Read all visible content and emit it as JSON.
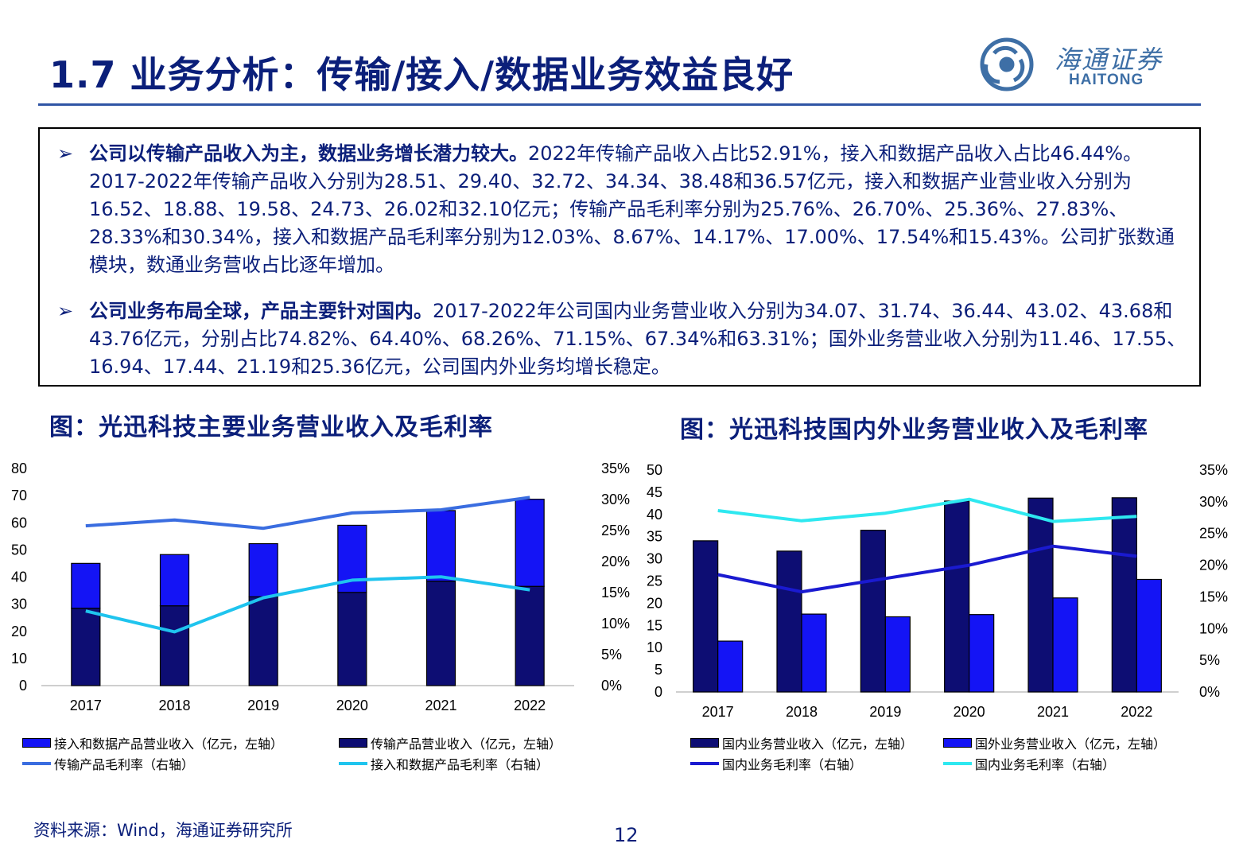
{
  "header": {
    "title": "1.7 业务分析：传输/接入/数据业务效益良好",
    "logo_cn": "海通证券",
    "logo_en": "HAITONG"
  },
  "bullets": [
    {
      "lead": "公司以传输产品收入为主，数据业务增长潜力较大。",
      "text": "2022年传输产品收入占比52.91%，接入和数据产品收入占比46.44%。2017-2022年传输产品收入分别为28.51、29.40、32.72、34.34、38.48和36.57亿元，接入和数据产业营业收入分别为16.52、18.88、19.58、24.73、26.02和32.10亿元；传输产品毛利率分别为25.76%、26.70%、25.36%、27.83%、28.33%和30.34%，接入和数据产品毛利率分别为12.03%、8.67%、14.17%、17.00%、17.54%和15.43%。公司扩张数通模块，数通业务营收占比逐年增加。"
    },
    {
      "lead": "公司业务布局全球，产品主要针对国内。",
      "text": "2017-2022年公司国内业务营业收入分别为34.07、31.74、36.44、43.02、43.68和43.76亿元，分别占比74.82%、64.40%、68.26%、71.15%、67.34%和63.31%；国外业务营业收入分别为11.46、17.55、16.94、17.44、21.19和25.36亿元，公司国内外业务均增长稳定。"
    }
  ],
  "bullet_mark": "➢",
  "chart_data": [
    {
      "type": "bar",
      "title": "图：光迅科技主要业务营业收入及毛利率",
      "categories": [
        "2017",
        "2018",
        "2019",
        "2020",
        "2021",
        "2022"
      ],
      "stacked": true,
      "ylim": [
        0,
        80
      ],
      "yticks": [
        "0",
        "10",
        "20",
        "30",
        "40",
        "50",
        "60",
        "70",
        "80"
      ],
      "y2lim": [
        0,
        35
      ],
      "y2ticks": [
        "0%",
        "5%",
        "10%",
        "15%",
        "20%",
        "25%",
        "30%",
        "35%"
      ],
      "series": [
        {
          "name": "传输产品营业收入（亿元，左轴）",
          "kind": "bar",
          "axis": "left",
          "color": "#0d0d73",
          "values": [
            28.51,
            29.4,
            32.72,
            34.34,
            38.48,
            36.57
          ]
        },
        {
          "name": "接入和数据产品营业收入（亿元，左轴）",
          "kind": "bar",
          "axis": "left",
          "color": "#1414f5",
          "values": [
            16.52,
            18.88,
            19.58,
            24.73,
            26.02,
            32.1
          ]
        },
        {
          "name": "传输产品毛利率（右轴）",
          "kind": "line",
          "axis": "right",
          "color": "#3a6de0",
          "values": [
            25.76,
            26.7,
            25.36,
            27.83,
            28.33,
            30.34
          ]
        },
        {
          "name": "接入和数据产品毛利率（右轴）",
          "kind": "line",
          "axis": "right",
          "color": "#1fc4ee",
          "values": [
            12.03,
            8.67,
            14.17,
            17.0,
            17.54,
            15.43
          ]
        }
      ],
      "legend": [
        {
          "label": "接入和数据产品营业收入（亿元，左轴）",
          "swatch": "bar",
          "color": "#1414f5"
        },
        {
          "label": "传输产品营业收入（亿元，左轴）",
          "swatch": "bar",
          "color": "#0d0d73"
        },
        {
          "label": "传输产品毛利率（右轴）",
          "swatch": "line",
          "color": "#3a6de0"
        },
        {
          "label": "接入和数据产品毛利率（右轴）",
          "swatch": "line",
          "color": "#1fc4ee"
        }
      ]
    },
    {
      "type": "bar",
      "title": "图：光迅科技国内外业务营业收入及毛利率",
      "categories": [
        "2017",
        "2018",
        "2019",
        "2020",
        "2021",
        "2022"
      ],
      "stacked": false,
      "ylim": [
        0,
        50
      ],
      "yticks": [
        "0",
        "5",
        "10",
        "15",
        "20",
        "25",
        "30",
        "35",
        "40",
        "45",
        "50"
      ],
      "y2lim": [
        0,
        35
      ],
      "y2ticks": [
        "0%",
        "5%",
        "10%",
        "15%",
        "20%",
        "25%",
        "30%",
        "35%"
      ],
      "series": [
        {
          "name": "国内业务营业收入（亿元，左轴）",
          "kind": "bar",
          "axis": "left",
          "color": "#0d0d73",
          "values": [
            34.07,
            31.74,
            36.44,
            43.02,
            43.68,
            43.76
          ]
        },
        {
          "name": "国外业务营业收入（亿元，左轴）",
          "kind": "bar",
          "axis": "left",
          "color": "#1414f5",
          "values": [
            11.46,
            17.55,
            16.94,
            17.44,
            21.19,
            25.36
          ]
        },
        {
          "name": "国内业务毛利率（右轴）",
          "kind": "line",
          "axis": "right",
          "color": "#1a1ad0",
          "values": [
            18.5,
            15.8,
            17.9,
            20.0,
            23.0,
            21.4
          ]
        },
        {
          "name": "国内业务毛利率（右轴）",
          "kind": "line",
          "axis": "right",
          "color": "#2ee8f0",
          "values": [
            28.6,
            27.0,
            28.2,
            30.4,
            26.9,
            27.7
          ]
        }
      ],
      "legend": [
        {
          "label": "国内业务营业收入（亿元，左轴）",
          "swatch": "bar",
          "color": "#0d0d73"
        },
        {
          "label": "国外业务营业收入（亿元，左轴）",
          "swatch": "bar",
          "color": "#1414f5"
        },
        {
          "label": "国内业务毛利率（右轴）",
          "swatch": "line",
          "color": "#1a1ad0"
        },
        {
          "label": "国内业务毛利率（右轴）",
          "swatch": "line",
          "color": "#2ee8f0"
        }
      ]
    }
  ],
  "footer": {
    "source": "资料来源：Wind，海通证券研究所",
    "page": "12"
  }
}
